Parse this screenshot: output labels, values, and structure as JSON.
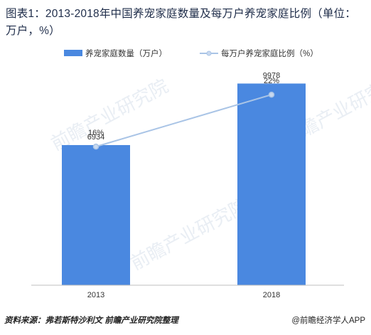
{
  "title": "图表1：2013-2018年中国养宠家庭数量及每万户养宠家庭比例（单位：万户，%）",
  "legend": {
    "bar_label": "养宠家庭数量（万户）",
    "line_label": "每万户养宠家庭比例（%）"
  },
  "source": "资料来源：弗若斯特沙利文 前瞻产业研究院整理",
  "credit": "@前瞻经济学人APP",
  "watermark": "前瞻产业研究院",
  "colors": {
    "bar": "#4a88e0",
    "line": "#a9c4e6",
    "line_marker": "#c9d9ef"
  },
  "chart_data": {
    "type": "bar",
    "categories": [
      "2013",
      "2018"
    ],
    "series": [
      {
        "name": "养宠家庭数量（万户）",
        "kind": "bar",
        "values": [
          6934,
          9978
        ],
        "labels": [
          "6934",
          "9978"
        ]
      },
      {
        "name": "每万户养宠家庭比例（%）",
        "kind": "line",
        "values": [
          16,
          22
        ],
        "labels": [
          "16%",
          "22%"
        ]
      }
    ],
    "ylim": [
      0,
      12000
    ],
    "y2lim": [
      0,
      28
    ],
    "legend_position": "top",
    "grid": false
  }
}
